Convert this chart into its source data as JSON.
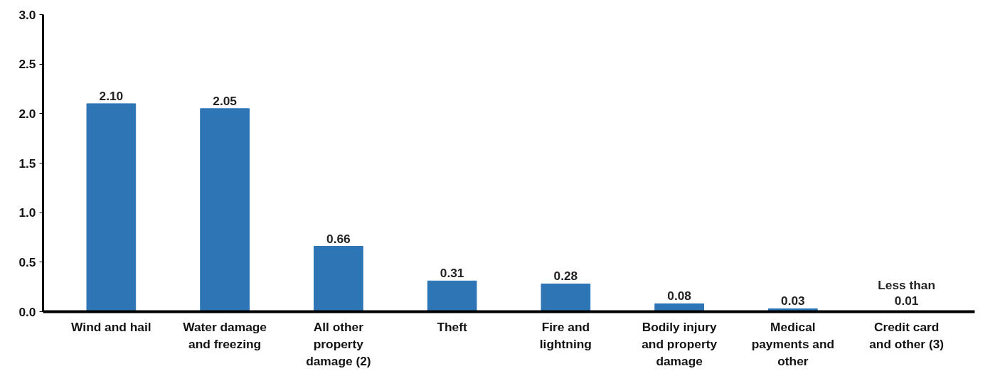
{
  "chart_data": {
    "type": "bar",
    "categories": [
      "Wind and hail",
      "Water damage and freezing",
      "All other property damage (2)",
      "Theft",
      "Fire and lightning",
      "Bodily injury and property damage",
      "Medical payments and other",
      "Credit card and other (3)"
    ],
    "values": [
      2.1,
      2.05,
      0.66,
      0.31,
      0.28,
      0.08,
      0.03,
      0.005
    ],
    "value_labels": [
      "2.10",
      "2.05",
      "0.66",
      "0.31",
      "0.28",
      "0.08",
      "0.03",
      "Less than 0.01"
    ],
    "color": "#2e75b6",
    "ylim": [
      0,
      3.0
    ],
    "yticks": [
      {
        "value": 0,
        "label": "0.0"
      },
      {
        "value": 0.5,
        "label": "0.5"
      },
      {
        "value": 1,
        "label": "1.0"
      },
      {
        "value": 1.5,
        "label": "1.5"
      },
      {
        "value": 2,
        "label": "2.0"
      },
      {
        "value": 2.5,
        "label": "2.5"
      },
      {
        "value": 3,
        "label": "3.0"
      }
    ],
    "grid": false
  }
}
